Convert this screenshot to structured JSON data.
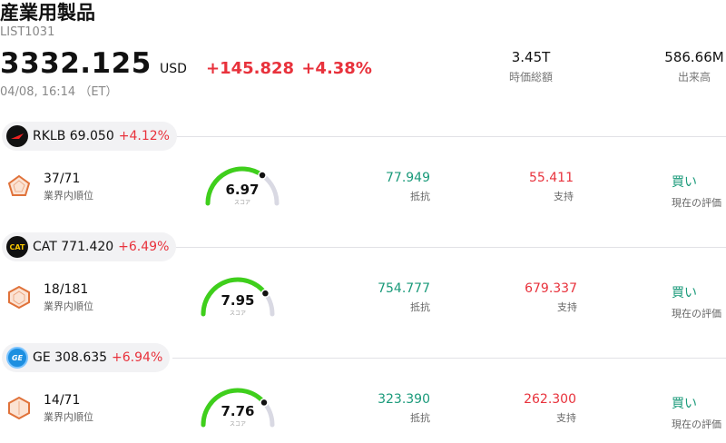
{
  "header": {
    "title": "産業用製品",
    "code": "LIST1031",
    "price": "3332.125",
    "currency": "USD",
    "change": "+145.828 +4.38%",
    "timestamp": "04/08, 16:14 （ET）"
  },
  "stats": [
    {
      "value": "3.45T",
      "label": "時価総額"
    },
    {
      "value": "586.66M",
      "label": "出来高"
    }
  ],
  "labels": {
    "rank": "業界内順位",
    "score": "スコア",
    "resistance": "抵抗",
    "support": "支持",
    "evaluation": "現在の評価"
  },
  "stocks": [
    {
      "ticker": "RKLB 69.050",
      "pct": "+4.12%",
      "logo_text": "",
      "logo_icon": "rocket-lab-logo-icon",
      "rank": "37/71",
      "score": "6.97",
      "score_fraction": 0.697,
      "resistance": "77.949",
      "support": "55.411",
      "rating": "買い"
    },
    {
      "ticker": "CAT 771.420",
      "pct": "+6.49%",
      "logo_text": "CAT",
      "logo_icon": "cat-logo-icon",
      "rank": "18/181",
      "score": "7.95",
      "score_fraction": 0.795,
      "resistance": "754.777",
      "support": "679.337",
      "rating": "買い"
    },
    {
      "ticker": "GE 308.635",
      "pct": "+6.94%",
      "logo_text": "GE",
      "logo_icon": "ge-logo-icon",
      "rank": "14/71",
      "score": "7.76",
      "score_fraction": 0.776,
      "resistance": "323.390",
      "support": "262.300",
      "rating": "買い"
    }
  ],
  "colors": {
    "up": "#e8323c",
    "resistance": "#1a9a7a",
    "gauge": "#3fcf1c",
    "gauge_track": "#d9d9e3",
    "rank_icon": "#e0723a"
  }
}
